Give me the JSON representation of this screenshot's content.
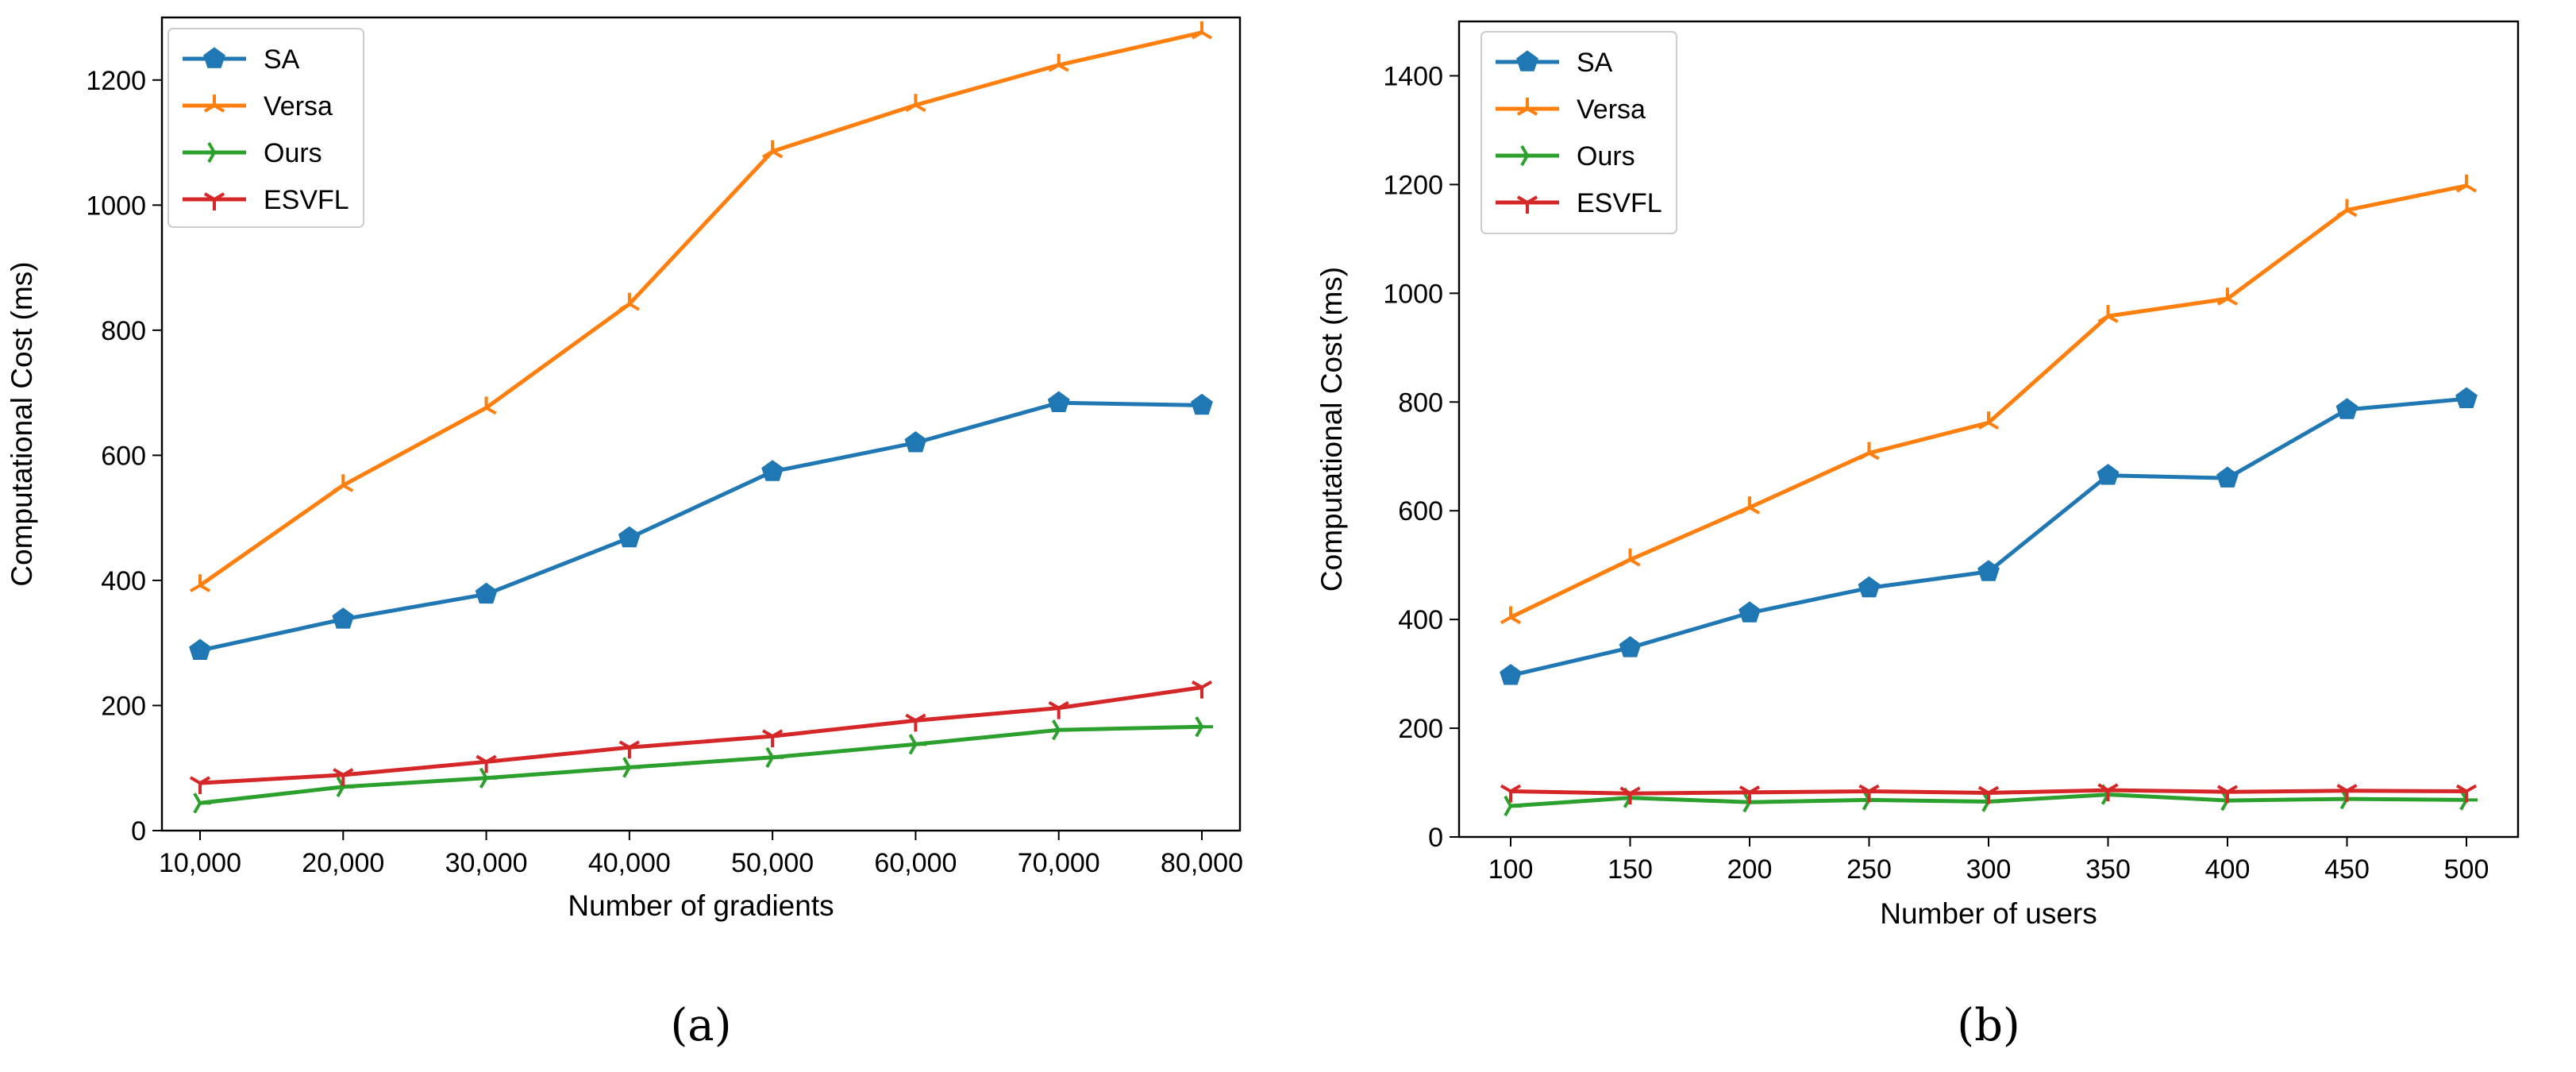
{
  "chart_data": [
    {
      "panel_label": "(a)",
      "type": "line",
      "xlabel": "Number of gradients",
      "ylabel": "Computational Cost (ms)",
      "categories": [
        "10,000",
        "20,000",
        "30,000",
        "40,000",
        "50,000",
        "60,000",
        "70,000",
        "80,000"
      ],
      "ylim": [
        0,
        1300
      ],
      "yticks": [
        "0",
        "200",
        "400",
        "600",
        "800",
        "1000",
        "1200"
      ],
      "ytick_values": [
        0,
        200,
        400,
        600,
        800,
        1000,
        1200
      ],
      "legend_position": "top-left",
      "series": [
        {
          "name": "SA",
          "color": "#1f77b4",
          "marker": "pentagon",
          "values": [
            288,
            338,
            378,
            468,
            574,
            620,
            684,
            680
          ]
        },
        {
          "name": "Versa",
          "color": "#ff7f0e",
          "marker": "tri-up",
          "values": [
            392,
            552,
            676,
            842,
            1086,
            1160,
            1224,
            1276
          ]
        },
        {
          "name": "Ours",
          "color": "#2ca02c",
          "marker": "tri-right",
          "values": [
            44,
            70,
            84,
            101,
            117,
            138,
            161,
            166
          ]
        },
        {
          "name": "ESVFL",
          "color": "#d62728",
          "marker": "tri-down",
          "values": [
            76,
            89,
            110,
            133,
            151,
            176,
            196,
            229
          ]
        }
      ]
    },
    {
      "panel_label": "(b)",
      "type": "line",
      "xlabel": "Number of users",
      "ylabel": "Computational Cost (ms)",
      "categories": [
        "100",
        "150",
        "200",
        "250",
        "300",
        "350",
        "400",
        "450",
        "500"
      ],
      "ylim": [
        0,
        1500
      ],
      "yticks": [
        "0",
        "200",
        "400",
        "600",
        "800",
        "1000",
        "1200",
        "1400"
      ],
      "ytick_values": [
        0,
        200,
        400,
        600,
        800,
        1000,
        1200,
        1400
      ],
      "legend_position": "top-left",
      "series": [
        {
          "name": "SA",
          "color": "#1f77b4",
          "marker": "pentagon",
          "values": [
            297,
            348,
            412,
            458,
            488,
            665,
            660,
            786,
            806
          ]
        },
        {
          "name": "Versa",
          "color": "#ff7f0e",
          "marker": "tri-up",
          "values": [
            404,
            510,
            606,
            706,
            762,
            958,
            990,
            1153,
            1198
          ]
        },
        {
          "name": "Ours",
          "color": "#2ca02c",
          "marker": "tri-right",
          "values": [
            57,
            72,
            64,
            68,
            65,
            78,
            67,
            70,
            68
          ]
        },
        {
          "name": "ESVFL",
          "color": "#d62728",
          "marker": "tri-down",
          "values": [
            84,
            80,
            82,
            84,
            81,
            86,
            83,
            85,
            84
          ]
        }
      ]
    }
  ]
}
